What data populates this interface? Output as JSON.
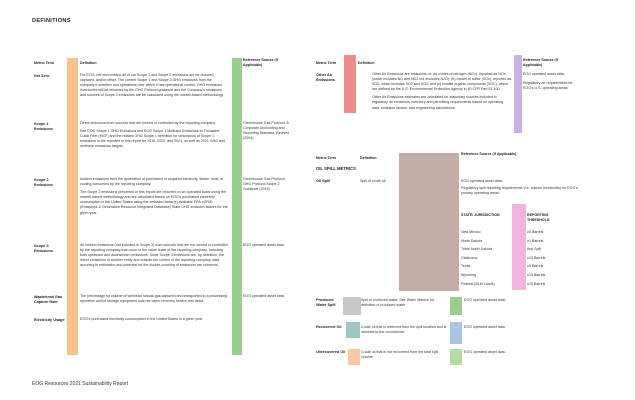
{
  "page": {
    "title": "DEFINITIONS",
    "footer": "EOG Resources 2021 Sustainability Report"
  },
  "left_headers": {
    "term": "Metric Term",
    "definition": "Definition",
    "reference": "Reference Source (If Applicable)"
  },
  "left_rows": [
    {
      "term": "Net Zero",
      "definition": [
        "For EOG, net zero means all of our Scope 1 and Scope 2 emissions are be reduced, captured, and/or offset. The current Scope 1 and Scope 2 GHG emissions from the company's activities and operations over which it has operational control. GHG emissions inventories will be informed by the GHG Protocol guidance and the Company's emissions and sources of Scope 2 emissions are be calculated using the market-based methodology."
      ],
      "reference": ""
    },
    {
      "term": "Scope 1 Emissions",
      "definition": [
        "Direct emissions from sources that are owned or controlled by the reporting company.",
        "See EOG Scope 1 GHG Emissions and EOG Scope 1 Methane Emissions in Thousand Cubic Feet (MCF) and the related GHG Scope 1 definition for description of Scope 1 emissions in the reported in this report for 2019, 2020, and 2021, as well as 2021 GHG and methane emissions targets."
      ],
      "reference": "Greenhouse Gas Protocol, A Corporate Accounting and Reporting Standard, Revised (2004)."
    },
    {
      "term": "Scope 2 Emissions",
      "definition": [
        "Indirect emissions from the generation of purchased or acquired electricity, steam, heat, or cooling consumed by the reporting company.",
        "The Scope 2 emissions presented in this report are reported on an operated basis using the market-based methodology and are calculated based on EOG's purchased electricity consumption in the United States using the emission factor(s) available EPA eGRID (Emissions & Generation Resource Integrated Database) State GHG emission factors for the given year."
      ],
      "reference": "Greenhouse Gas Protocol, GHG Protocol Scope 2 Guidance (2015)."
    },
    {
      "term": "Scope 3 Emissions",
      "definition": [
        "All indirect emissions (not included in Scope 2) from sources that are not owned or controlled by the reporting company that occur in the value chain of the reporting company, including both upstream and downstream emissions. Since Scope 3 emissions are, by definition, the direct emissions of another entity and outside the control of the reporting company, data accuracy in estimation and potential for the double-counting of emissions are concerns."
      ],
      "reference": "EOG operated asset data."
    },
    {
      "term": "Wastehead Gas Capture Rate",
      "definition": [
        "The percentage by volume of wellhead natural gas captured and transported to a processing operation and/or storage equipment such as vapor recovery towers and tanks."
      ],
      "reference": "EOG operated asset data."
    },
    {
      "term": "Electricity Usage",
      "definition": [
        "EOG's purchased electricity consumption in the United States in a given year."
      ],
      "reference": ""
    }
  ],
  "right_headers": {
    "term": "Metric Term",
    "definition": "Definition",
    "reference": "Reference Source (If Applicable)"
  },
  "right_top": {
    "term": "Other Air Emissions",
    "definition": [
      "Other Air Emissions are emissions of: (a) oxides of nitrogen (NOx), reported as NOx (which includes NO and NO2 but excludes N2O); (b) oxides of sulfur (SOx), reported as SO2, which includes SO2 and SO3; and (c) volatile organic compounds (VOC), which are defined by the U.S. Environmental Protection Agency in 40 CFR Part 51.100.",
      "Other Air Emissions estimates are calculated for stationary sources included in regulatory air emissions inventory and permitting requirements based on operating data, emission factors, and engineering calculations."
    ],
    "reference": [
      "EOG operated asset data.",
      "Regulatory air requirements for EOG's U.S. operating areas."
    ]
  },
  "right_headers2": {
    "term": "Metric Term",
    "definition": "Definition",
    "reference": "Reference Source (If Applicable)"
  },
  "oil_spill_section": "OIL SPILL METRICS",
  "oil_spill": {
    "term": "Oil Spill",
    "definition": "Spill of crude oil.",
    "reference": [
      "EOG operated asset data.",
      "Regulatory spill reporting requirements (i.e. volume thresholds) for EOG's primary operating areas:"
    ],
    "table_headers": {
      "state": "STATE/ JURISDICTION",
      "threshold": "REPORTING THRESHOLD"
    },
    "table": [
      {
        "state": "New Mexico",
        "threshold": "≥5 Barrels"
      },
      {
        "state": "North Dakota",
        "threshold": "≥1 Barrels"
      },
      {
        "state": "Tribal North Dakota",
        "threshold": "Any Spill"
      },
      {
        "state": "Oklahoma",
        "threshold": "≥10 Barrels"
      },
      {
        "state": "Texas",
        "threshold": "≥5 Barrels"
      },
      {
        "state": "Wyoming",
        "threshold": "≥10 Barrels"
      },
      {
        "state": "Federal (BLM Lands)",
        "threshold": "≥10 Barrels"
      }
    ]
  },
  "right_bottom": [
    {
      "term": "Produced Water Spill",
      "definition": "Spill of produced water. See Water Metrics for definition of produced water.",
      "reference": "EOG operated asset data."
    },
    {
      "term": "Recovered Oil",
      "definition": "Crude oil that is retrieved from the spill location and is returned to the commercial.",
      "reference": "EOG operated asset data."
    },
    {
      "term": "Unrecovered Oil",
      "definition": "Crude oil that is not recovered from the total spill volume.",
      "reference": "EOG operated asset data."
    }
  ],
  "colors": {
    "orange": "#f7c28f",
    "green": "#9ccf8f",
    "red": "#e98c8a",
    "purple": "#c9b3de",
    "taupe": "#c4ada9",
    "pink": "#eeb6dc",
    "grey": "#c8c8c8",
    "blue": "#a9c6e6",
    "teal": "#9cc8c0",
    "peach": "#f8c9a0",
    "lightgreen": "#b4dca5"
  }
}
